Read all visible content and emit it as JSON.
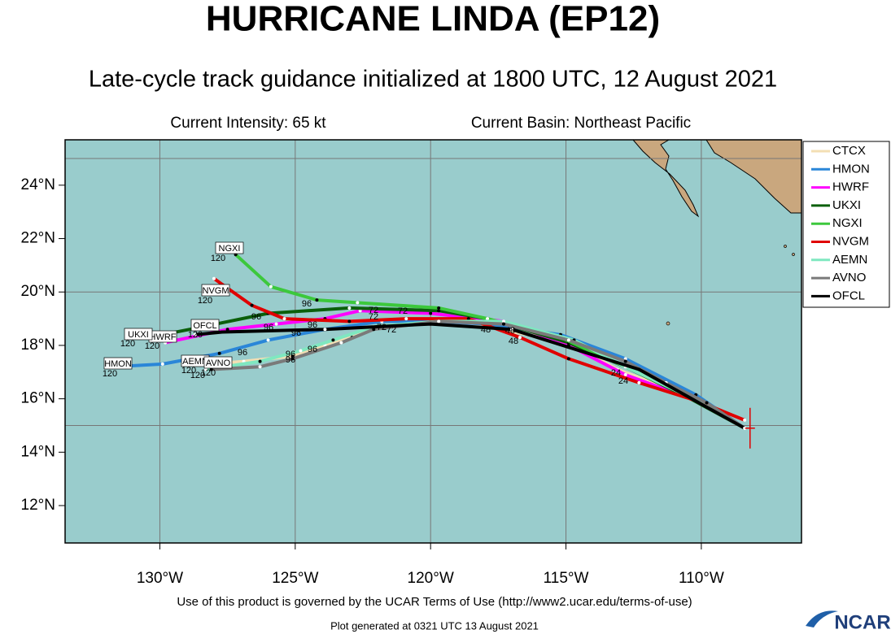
{
  "header": {
    "title": "HURRICANE LINDA (EP12)",
    "subtitle": "Late-cycle track guidance initialized at 1800 UTC, 12 August 2021",
    "intensity": "Current Intensity: 65 kt",
    "basin": "Current Basin: Northeast Pacific"
  },
  "map": {
    "xlim": [
      -133.5,
      -106.3
    ],
    "ylim": [
      10.6,
      25.7
    ],
    "xticks": [
      {
        "value": -130,
        "label": "130°W"
      },
      {
        "value": -125,
        "label": "125°W"
      },
      {
        "value": -120,
        "label": "120°W"
      },
      {
        "value": -115,
        "label": "115°W"
      },
      {
        "value": -110,
        "label": "110°W"
      }
    ],
    "yticks": [
      {
        "value": 12,
        "label": "12°N"
      },
      {
        "value": 14,
        "label": "14°N"
      },
      {
        "value": 16,
        "label": "16°N"
      },
      {
        "value": 18,
        "label": "18°N"
      },
      {
        "value": 20,
        "label": "20°N"
      },
      {
        "value": 22,
        "label": "22°N"
      },
      {
        "value": 24,
        "label": "24°N"
      }
    ],
    "grid_lat": [
      15,
      20,
      25
    ],
    "current_position": {
      "lon": -108.2,
      "lat": 14.9
    },
    "tracks": [
      {
        "name": "CTCX",
        "color": "#f3dfb4",
        "boxed": false,
        "hours": [
          "120",
          "96",
          "72"
        ],
        "lon": [
          -108.4,
          -110.2,
          -113.1,
          -114.9,
          -117.9,
          -120.0,
          -122.0,
          -122.9,
          -123.9,
          -125.1,
          -126.9,
          -128.1
        ],
        "lat": [
          14.9,
          16.0,
          17.1,
          18.1,
          18.7,
          18.85,
          18.7,
          18.3,
          18.0,
          17.6,
          17.4,
          17.3
        ]
      },
      {
        "name": "HMON",
        "color": "#2a86d8",
        "boxed": true,
        "hours": [
          "120",
          "96",
          "48"
        ],
        "lon": [
          -108.4,
          -110.2,
          -112.8,
          -115.2,
          -117.9,
          -120.0,
          -121.8,
          -123.9,
          -126.0,
          -127.8,
          -129.9,
          -131.7
        ],
        "lat": [
          14.9,
          16.15,
          17.5,
          18.4,
          18.8,
          18.9,
          18.9,
          18.6,
          18.2,
          17.7,
          17.3,
          17.2
        ]
      },
      {
        "name": "HWRF",
        "color": "#ff00ff",
        "boxed": true,
        "hours": [
          "120",
          "96",
          "72"
        ],
        "lon": [
          -108.4,
          -110.1,
          -112.8,
          -114.9,
          -117.3,
          -120.0,
          -122.6,
          -123.9,
          -125.7,
          -127.5,
          -129.8
        ],
        "lat": [
          14.9,
          15.9,
          16.9,
          18.0,
          18.9,
          19.2,
          19.3,
          19.0,
          18.8,
          18.6,
          18.1
        ]
      },
      {
        "name": "UKXI",
        "color": "#0a5f0a",
        "boxed": true,
        "hours": [
          "120",
          "96",
          "72"
        ],
        "lon": [
          -108.4,
          -110.4,
          -112.8,
          -114.9,
          -117.9,
          -119.7,
          -123.0,
          -126.0,
          -128.4,
          -130.4
        ],
        "lat": [
          14.9,
          16.0,
          17.2,
          18.1,
          19.0,
          19.3,
          19.4,
          19.2,
          18.7,
          18.3
        ]
      },
      {
        "name": "NGXI",
        "color": "#3cc83c",
        "boxed": true,
        "hours": [
          "120",
          "96",
          "72"
        ],
        "lon": [
          -108.4,
          -110.2,
          -112.8,
          -115.2,
          -117.9,
          -119.7,
          -122.7,
          -124.2,
          -125.9,
          -127.2
        ],
        "lat": [
          14.9,
          16.0,
          17.2,
          18.3,
          19.0,
          19.4,
          19.6,
          19.7,
          20.2,
          21.4
        ]
      },
      {
        "name": "NVGM",
        "color": "#e00000",
        "boxed": true,
        "hours": [
          "120",
          "96",
          "48"
        ],
        "lon": [
          -108.4,
          -110.1,
          -112.3,
          -114.9,
          -116.7,
          -118.6,
          -120.9,
          -123.0,
          -125.4,
          -126.6,
          -128.0
        ],
        "lat": [
          15.2,
          15.9,
          16.6,
          17.5,
          18.3,
          19.0,
          19.0,
          18.9,
          19.0,
          19.5,
          20.5
        ]
      },
      {
        "name": "AEMN",
        "color": "#7fe8c0",
        "boxed": true,
        "hours": [
          "120",
          "96"
        ],
        "lon": [
          -108.4,
          -110.5,
          -112.8,
          -114.7,
          -117.3,
          -119.7,
          -122.1,
          -123.6,
          -124.8,
          -126.3,
          -128.3
        ],
        "lat": [
          14.9,
          16.1,
          17.2,
          18.2,
          18.9,
          18.9,
          18.7,
          18.2,
          17.8,
          17.4,
          17.1
        ]
      },
      {
        "name": "AVNO",
        "color": "#7a7a7a",
        "boxed": true,
        "hours": [
          "120",
          "96",
          "24"
        ],
        "lon": [
          -108.4,
          -109.8,
          -111.3,
          -112.8,
          -114.9,
          -117.3,
          -119.7,
          -122.1,
          -123.3,
          -125.1,
          -126.3,
          -128.1
        ],
        "lat": [
          14.9,
          15.85,
          16.6,
          17.4,
          18.2,
          18.8,
          18.9,
          18.6,
          18.1,
          17.5,
          17.2,
          17.1
        ]
      },
      {
        "name": "OFCL",
        "color": "#000000",
        "boxed": true,
        "hours": [
          "120",
          "96",
          "72",
          "48",
          "24"
        ],
        "lon": [
          -108.4,
          -112.3,
          -117.0,
          -120.0,
          -123.9,
          -127.7,
          -128.7
        ],
        "lat": [
          14.9,
          17.1,
          18.6,
          18.8,
          18.6,
          18.5,
          18.4
        ]
      }
    ]
  },
  "footer": {
    "terms": "Use of this product is governed by the UCAR Terms of Use (http://www2.ucar.edu/terms-of-use)",
    "generated": "Plot generated at 0321 UTC   13 August 2021",
    "logo": "NCAR"
  }
}
